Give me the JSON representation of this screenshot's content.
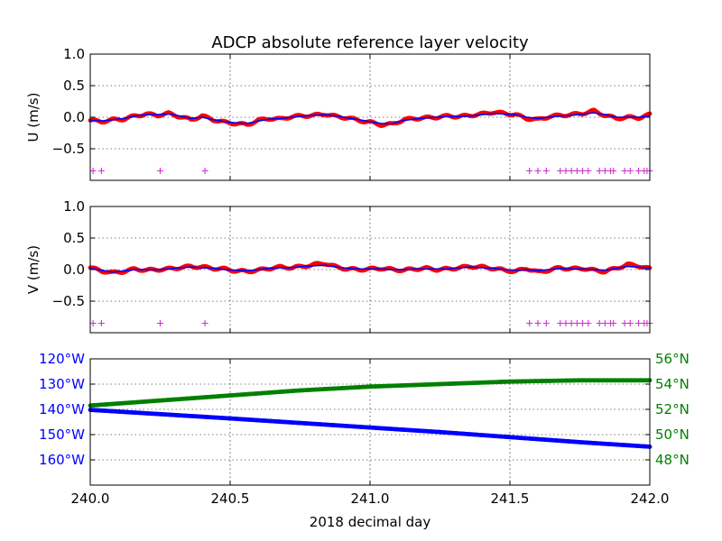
{
  "figure": {
    "title": "ADCP absolute reference layer velocity",
    "xlabel": "2018 decimal day"
  },
  "chart_data": [
    {
      "type": "scatter",
      "panel": "u",
      "ylabel": "U (m/s)",
      "xlim": [
        240.0,
        242.0
      ],
      "ylim": [
        -1.0,
        1.0
      ],
      "xticks": [
        240.0,
        240.5,
        241.0,
        241.5,
        242.0
      ],
      "xtick_labels": [],
      "yticks": [
        1.0,
        0.5,
        0.0,
        -0.5
      ],
      "ytick_labels": [
        "1.0",
        "0.5",
        "0.0",
        "−0.5"
      ],
      "grid": true,
      "series": [
        {
          "role": "raw-points",
          "color": "#ff0000",
          "x": [
            240.0,
            240.04,
            240.08,
            240.12,
            240.16,
            240.2,
            240.24,
            240.28,
            240.32,
            240.36,
            240.4,
            240.44,
            240.48,
            240.52,
            240.56,
            240.6,
            240.64,
            240.68,
            240.72,
            240.76,
            240.8,
            240.84,
            240.88,
            240.92,
            240.96,
            241.0,
            241.04,
            241.08,
            241.12,
            241.16,
            241.2,
            241.24,
            241.28,
            241.32,
            241.36,
            241.4,
            241.44,
            241.48,
            241.52,
            241.56,
            241.6,
            241.64,
            241.68,
            241.72,
            241.76,
            241.8,
            241.84,
            241.88,
            241.92,
            241.96,
            242.0
          ],
          "y": [
            -0.05,
            -0.07,
            -0.04,
            -0.03,
            0.02,
            0.05,
            0.03,
            0.06,
            0.01,
            -0.04,
            0.02,
            -0.04,
            -0.08,
            -0.1,
            -0.12,
            -0.05,
            -0.02,
            -0.03,
            0.01,
            0.02,
            0.03,
            0.05,
            0.01,
            -0.01,
            -0.05,
            -0.08,
            -0.12,
            -0.11,
            -0.04,
            -0.02,
            -0.01,
            0.0,
            0.02,
            0.01,
            0.03,
            0.05,
            0.08,
            0.06,
            0.04,
            -0.02,
            -0.04,
            0.01,
            0.03,
            0.04,
            0.06,
            0.1,
            0.03,
            -0.02,
            0.0,
            -0.01,
            0.04
          ]
        },
        {
          "role": "smoothed",
          "color": "#0000ff",
          "x": [
            240.0,
            240.04,
            240.08,
            240.12,
            240.16,
            240.2,
            240.24,
            240.28,
            240.32,
            240.36,
            240.4,
            240.44,
            240.48,
            240.52,
            240.56,
            240.6,
            240.64,
            240.68,
            240.72,
            240.76,
            240.8,
            240.84,
            240.88,
            240.92,
            240.96,
            241.0,
            241.04,
            241.08,
            241.12,
            241.16,
            241.2,
            241.24,
            241.28,
            241.32,
            241.36,
            241.4,
            241.44,
            241.48,
            241.52,
            241.56,
            241.6,
            241.64,
            241.68,
            241.72,
            241.76,
            241.8,
            241.84,
            241.88,
            241.92,
            241.96,
            242.0
          ],
          "y": [
            -0.05,
            -0.06,
            -0.04,
            -0.02,
            0.02,
            0.04,
            0.04,
            0.05,
            0.02,
            -0.02,
            0.0,
            -0.04,
            -0.07,
            -0.09,
            -0.1,
            -0.06,
            -0.03,
            -0.02,
            0.0,
            0.02,
            0.03,
            0.04,
            0.02,
            -0.01,
            -0.04,
            -0.07,
            -0.1,
            -0.1,
            -0.05,
            -0.03,
            -0.01,
            0.0,
            0.01,
            0.01,
            0.02,
            0.04,
            0.06,
            0.05,
            0.04,
            0.0,
            -0.02,
            0.0,
            0.02,
            0.03,
            0.05,
            0.07,
            0.04,
            0.0,
            0.0,
            0.0,
            0.02
          ]
        },
        {
          "role": "flags",
          "marker": "+",
          "color": "#cc33cc",
          "y_level": -0.85,
          "x": [
            240.01,
            240.04,
            240.25,
            240.41,
            241.57,
            241.6,
            241.63,
            241.68,
            241.7,
            241.72,
            241.74,
            241.76,
            241.78,
            241.82,
            241.84,
            241.86,
            241.87,
            241.91,
            241.93,
            241.96,
            241.98,
            241.99,
            242.0
          ]
        }
      ]
    },
    {
      "type": "scatter",
      "panel": "v",
      "ylabel": "V (m/s)",
      "xlim": [
        240.0,
        242.0
      ],
      "ylim": [
        -1.0,
        1.0
      ],
      "xticks": [
        240.0,
        240.5,
        241.0,
        241.5,
        242.0
      ],
      "xtick_labels": [],
      "yticks": [
        1.0,
        0.5,
        0.0,
        -0.5
      ],
      "ytick_labels": [
        "1.0",
        "0.5",
        "0.0",
        "−0.5"
      ],
      "grid": true,
      "series": [
        {
          "role": "raw-points",
          "color": "#ff0000",
          "x": [
            240.0,
            240.04,
            240.08,
            240.12,
            240.16,
            240.2,
            240.24,
            240.28,
            240.32,
            240.36,
            240.4,
            240.44,
            240.48,
            240.52,
            240.56,
            240.6,
            240.64,
            240.68,
            240.72,
            240.76,
            240.8,
            240.84,
            240.88,
            240.92,
            240.96,
            241.0,
            241.04,
            241.08,
            241.12,
            241.16,
            241.2,
            241.24,
            241.28,
            241.32,
            241.36,
            241.4,
            241.44,
            241.48,
            241.52,
            241.56,
            241.6,
            241.64,
            241.68,
            241.72,
            241.76,
            241.8,
            241.84,
            241.88,
            241.92,
            241.96,
            242.0
          ],
          "y": [
            0.03,
            -0.02,
            -0.05,
            -0.03,
            0.01,
            -0.01,
            0.0,
            0.01,
            0.03,
            0.05,
            0.04,
            0.02,
            0.01,
            -0.02,
            -0.03,
            -0.01,
            0.02,
            0.04,
            0.03,
            0.05,
            0.08,
            0.1,
            0.04,
            0.01,
            0.0,
            0.01,
            0.02,
            0.0,
            -0.01,
            0.01,
            0.02,
            0.0,
            0.01,
            0.03,
            0.05,
            0.04,
            0.02,
            -0.01,
            -0.03,
            0.02,
            -0.04,
            -0.01,
            0.03,
            0.01,
            0.02,
            -0.01,
            -0.03,
            0.02,
            0.08,
            0.06,
            0.01
          ]
        },
        {
          "role": "smoothed",
          "color": "#0000ff",
          "x": [
            240.0,
            240.04,
            240.08,
            240.12,
            240.16,
            240.2,
            240.24,
            240.28,
            240.32,
            240.36,
            240.4,
            240.44,
            240.48,
            240.52,
            240.56,
            240.6,
            240.64,
            240.68,
            240.72,
            240.76,
            240.8,
            240.84,
            240.88,
            240.92,
            240.96,
            241.0,
            241.04,
            241.08,
            241.12,
            241.16,
            241.2,
            241.24,
            241.28,
            241.32,
            241.36,
            241.4,
            241.44,
            241.48,
            241.52,
            241.56,
            241.6,
            241.64,
            241.68,
            241.72,
            241.76,
            241.8,
            241.84,
            241.88,
            241.92,
            241.96,
            242.0
          ],
          "y": [
            0.02,
            -0.01,
            -0.04,
            -0.02,
            0.0,
            0.0,
            0.0,
            0.01,
            0.03,
            0.04,
            0.03,
            0.02,
            0.0,
            -0.01,
            -0.02,
            0.0,
            0.02,
            0.03,
            0.03,
            0.05,
            0.06,
            0.07,
            0.04,
            0.02,
            0.01,
            0.01,
            0.01,
            0.0,
            0.0,
            0.01,
            0.01,
            0.01,
            0.01,
            0.03,
            0.04,
            0.03,
            0.02,
            0.0,
            -0.01,
            0.0,
            -0.02,
            0.0,
            0.02,
            0.01,
            0.01,
            0.0,
            -0.01,
            0.02,
            0.05,
            0.04,
            0.02
          ]
        },
        {
          "role": "flags",
          "marker": "+",
          "color": "#cc33cc",
          "y_level": -0.85,
          "x": [
            240.01,
            240.04,
            240.25,
            240.41,
            241.57,
            241.6,
            241.63,
            241.68,
            241.7,
            241.72,
            241.74,
            241.76,
            241.78,
            241.82,
            241.84,
            241.86,
            241.87,
            241.91,
            241.93,
            241.96,
            241.98,
            241.99,
            242.0
          ]
        }
      ]
    },
    {
      "type": "scatter",
      "panel": "position",
      "xlabel": "2018 decimal day",
      "xlim": [
        240.0,
        242.0
      ],
      "xticks": [
        240.0,
        240.5,
        241.0,
        241.5,
        242.0
      ],
      "xtick_labels": [
        "240.0",
        "240.5",
        "241.0",
        "241.5",
        "242.0"
      ],
      "grid": true,
      "left_axis": {
        "quantity": "longitude (degrees east)",
        "color": "#0000ff",
        "ylim": [
          -120,
          -170
        ],
        "yticks": [
          -120,
          -130,
          -140,
          -150,
          -160
        ],
        "ytick_labels": [
          "120°W",
          "130°W",
          "140°W",
          "150°W",
          "160°W"
        ]
      },
      "right_axis": {
        "quantity": "latitude (degrees north)",
        "color": "#008000",
        "ylim": [
          46,
          56
        ],
        "yticks": [
          56,
          54,
          52,
          50,
          48
        ],
        "ytick_labels": [
          "56°N",
          "54°N",
          "52°N",
          "50°N",
          "48°N"
        ]
      },
      "series": [
        {
          "axis": "left",
          "color": "#0000ff",
          "x": [
            240.0,
            240.25,
            240.5,
            240.75,
            241.0,
            241.25,
            241.5,
            241.75,
            242.0
          ],
          "y": [
            -140.2,
            -141.9,
            -143.6,
            -145.4,
            -147.2,
            -149.0,
            -151.0,
            -153.0,
            -154.8
          ]
        },
        {
          "axis": "right",
          "color": "#008000",
          "x": [
            240.0,
            240.25,
            240.5,
            240.75,
            241.0,
            241.25,
            241.5,
            241.75,
            242.0
          ],
          "y": [
            52.3,
            52.7,
            53.1,
            53.5,
            53.8,
            54.0,
            54.2,
            54.3,
            54.3
          ]
        }
      ]
    }
  ]
}
